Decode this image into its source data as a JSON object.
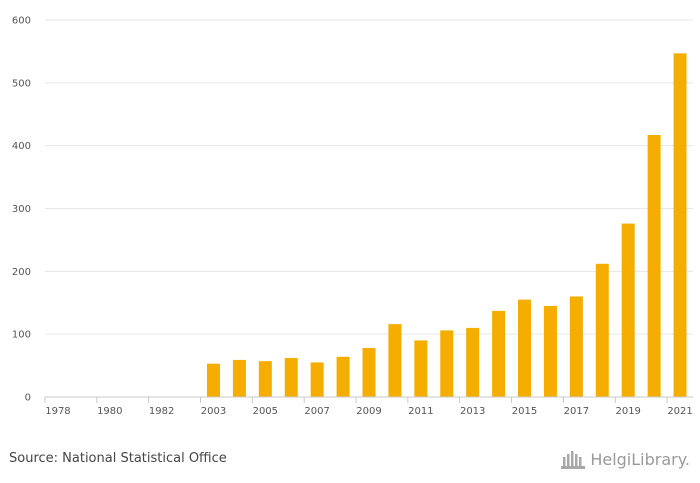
{
  "chart_data": {
    "type": "bar",
    "categories": [
      "1978",
      "1979",
      "1980",
      "1981",
      "1982",
      "1983",
      "2003",
      "2004",
      "2005",
      "2006",
      "2007",
      "2008",
      "2009",
      "2010",
      "2011",
      "2012",
      "2013",
      "2014",
      "2015",
      "2016",
      "2017",
      "2018",
      "2019",
      "2020",
      "2021"
    ],
    "values": [
      0,
      0,
      0,
      0,
      0,
      0,
      53,
      59,
      57,
      62,
      55,
      64,
      78,
      116,
      90,
      106,
      110,
      137,
      155,
      145,
      160,
      212,
      276,
      417,
      547
    ],
    "x_tick_labels": [
      "1978",
      "1980",
      "1982",
      "2003",
      "2005",
      "2007",
      "2009",
      "2011",
      "2013",
      "2015",
      "2017",
      "2019",
      "2021"
    ],
    "y_ticks": [
      "0",
      "100",
      "200",
      "300",
      "400",
      "500",
      "600"
    ],
    "ylim": [
      0,
      600
    ],
    "title": "",
    "xlabel": "",
    "ylabel": "",
    "grid": true,
    "bar_color": "#f5ae00"
  },
  "footer": {
    "source": "Source: National Statistical Office",
    "brand": "HelgiLibrary."
  }
}
